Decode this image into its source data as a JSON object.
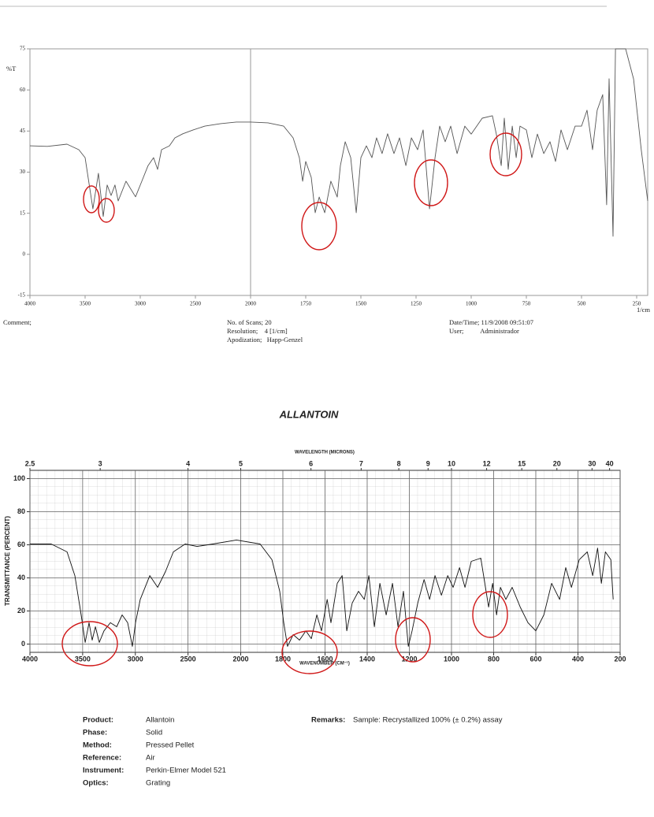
{
  "chart_data": [
    {
      "type": "line",
      "y_label": "%T",
      "x_label": "1/cm",
      "xlim": [
        4000,
        200
      ],
      "ylim": [
        -15,
        75
      ],
      "x_scale_break": 2000,
      "x_scale_factor": 2,
      "xticks": [
        4000,
        3500,
        3000,
        2500,
        2000,
        1750,
        1500,
        1250,
        1000,
        750,
        500,
        250
      ],
      "yticks": [
        -15,
        0,
        15,
        30,
        45,
        60,
        75
      ],
      "grid": false,
      "color": "#555555",
      "x": [
        4000,
        3843,
        3664,
        3557,
        3500,
        3429,
        3379,
        3336,
        3300,
        3264,
        3229,
        3200,
        3129,
        3043,
        2986,
        2929,
        2879,
        2843,
        2807,
        2736,
        2686,
        2614,
        2521,
        2414,
        2271,
        2129,
        2000,
        1921,
        1850,
        1807,
        1779,
        1764,
        1750,
        1725,
        1707,
        1689,
        1664,
        1636,
        1607,
        1593,
        1571,
        1546,
        1521,
        1500,
        1475,
        1450,
        1429,
        1404,
        1379,
        1350,
        1325,
        1296,
        1271,
        1243,
        1218,
        1189,
        1164,
        1143,
        1118,
        1093,
        1064,
        1029,
        1000,
        975,
        950,
        904,
        886,
        864,
        850,
        832,
        814,
        796,
        779,
        750,
        725,
        700,
        671,
        643,
        618,
        593,
        564,
        529,
        500,
        475,
        450,
        429,
        404,
        386,
        375,
        357,
        346,
        332,
        300,
        264,
        229,
        200
      ],
      "values": [
        39.6,
        39.4,
        40.2,
        38.2,
        35.3,
        16.6,
        29.6,
        13.8,
        25.3,
        21.5,
        25.3,
        19.5,
        26.7,
        21,
        26.7,
        32.4,
        35.3,
        31,
        38.2,
        39.6,
        42.5,
        44,
        45.4,
        46.8,
        47.7,
        48.3,
        48.3,
        48,
        46.8,
        42.5,
        35.3,
        26.7,
        33.9,
        28.1,
        15.2,
        20.9,
        15.2,
        26.7,
        20.9,
        32.4,
        41.1,
        35.3,
        15.2,
        35.3,
        39.6,
        35.3,
        42.5,
        36.8,
        44,
        36.8,
        42.5,
        32.4,
        42.5,
        38.2,
        45.4,
        16.6,
        35.3,
        46.8,
        41.1,
        46.8,
        36.8,
        46.8,
        43.9,
        46.8,
        49.7,
        50.6,
        43.9,
        32.4,
        49.7,
        31,
        46.8,
        35.3,
        46.8,
        45.4,
        35.3,
        43.9,
        36.8,
        41.1,
        33.9,
        45.4,
        38.2,
        46.8,
        46.8,
        52.6,
        38.2,
        52.6,
        58.3,
        18.1,
        64.1,
        6.6,
        75,
        75,
        75,
        64,
        38,
        19.5
      ],
      "info": [
        "Comment;",
        "No. of Scans; 20",
        "Resolution;    4 [1/cm]",
        "Apodization;   Happ-Genzel",
        "Date/Time; 11/9/2008 09:51:07",
        "User;          Administrador"
      ]
    },
    {
      "type": "line",
      "title": "ALLANTOIN",
      "y_label": "TRANSMITTANCE (PERCENT)",
      "x_label": "WAVENUMBER (CM⁻¹)",
      "x2_label": "WAVELENGTH (MICRONS)",
      "xlim": [
        4000,
        200
      ],
      "ylim": [
        -5,
        105
      ],
      "x_scale_break": 2000,
      "x_scale_factor": 2,
      "xticks": [
        4000,
        3500,
        3000,
        2500,
        2000,
        1800,
        1600,
        1400,
        1200,
        1000,
        800,
        600,
        400,
        200
      ],
      "x2ticks": [
        2.5,
        3,
        4,
        5,
        6,
        7,
        8,
        9,
        10,
        12,
        15,
        20,
        30,
        40
      ],
      "yticks": [
        0,
        20,
        40,
        60,
        80,
        100
      ],
      "grid": true,
      "color": "#111111",
      "x": [
        4000,
        3798,
        3648,
        3574,
        3514,
        3476,
        3439,
        3409,
        3379,
        3342,
        3297,
        3237,
        3177,
        3125,
        3073,
        3028,
        2998,
        2953,
        2863,
        2788,
        2714,
        2639,
        2527,
        2414,
        2265,
        2040,
        1908,
        1852,
        1815,
        1796,
        1778,
        1751,
        1721,
        1691,
        1665,
        1639,
        1617,
        1590,
        1572,
        1542,
        1519,
        1497,
        1471,
        1441,
        1414,
        1392,
        1366,
        1340,
        1310,
        1280,
        1254,
        1228,
        1205,
        1187,
        1160,
        1130,
        1104,
        1078,
        1048,
        1018,
        992,
        962,
        936,
        906,
        861,
        824,
        805,
        786,
        768,
        742,
        712,
        674,
        637,
        600,
        562,
        525,
        487,
        458,
        431,
        394,
        356,
        330,
        307,
        289,
        270,
        244,
        233
      ],
      "values": [
        60.5,
        60.5,
        55.7,
        41.4,
        17.6,
        1,
        12.9,
        2.4,
        10.5,
        1,
        8,
        12.9,
        10.5,
        17.6,
        12.9,
        -1.4,
        12.9,
        27,
        41.4,
        34.3,
        43.8,
        55.7,
        60.5,
        59,
        60.5,
        62.9,
        60.5,
        51,
        31.9,
        12.9,
        -1.4,
        5.7,
        2.4,
        8,
        3.3,
        17.6,
        8,
        27,
        12.9,
        36.7,
        41.4,
        8,
        24.8,
        31.9,
        27,
        41.4,
        10.5,
        36.7,
        17.6,
        36.7,
        10.5,
        31.9,
        -1.4,
        8,
        24.8,
        39,
        27,
        41.4,
        29.5,
        41.4,
        34.3,
        46.2,
        34.3,
        50,
        51.9,
        22.4,
        36.7,
        17.6,
        34.3,
        27,
        34.3,
        22.4,
        12.9,
        8,
        17.6,
        36.7,
        27,
        46.2,
        34.3,
        51,
        55.7,
        41.4,
        58,
        36.7,
        55.7,
        51,
        27
      ],
      "info": [
        {
          "label": "Product:",
          "value": "Allantoin"
        },
        {
          "label": "Phase:",
          "value": "Solid"
        },
        {
          "label": "Method:",
          "value": "Pressed Pellet"
        },
        {
          "label": "Reference:",
          "value": "Air"
        },
        {
          "label": "Instrument:",
          "value": "Perkin-Elmer Model 521"
        },
        {
          "label": "Optics:",
          "value": "Grating"
        }
      ],
      "remarks": {
        "label": "Remarks:",
        "value": "Sample: Recrystallized 100% (± 0.2%) assay"
      }
    }
  ]
}
